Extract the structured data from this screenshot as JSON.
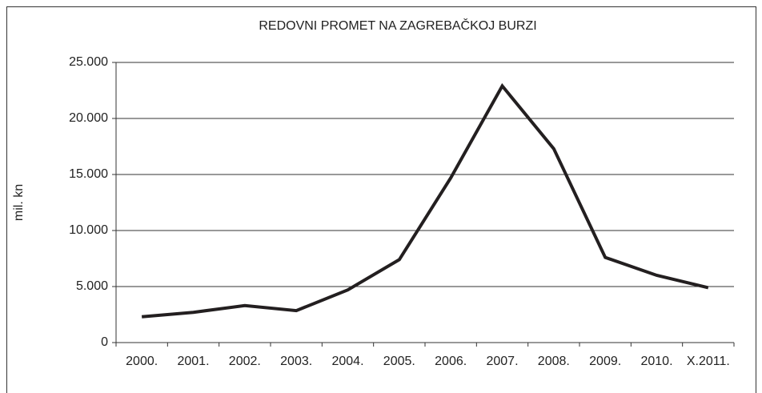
{
  "chart_data": {
    "type": "line",
    "title": "REDOVNI PROMET NA ZAGREBAČKOJ BURZI",
    "y_label": "mil. kn",
    "categories": [
      "2000.",
      "2001.",
      "2002.",
      "2003.",
      "2004.",
      "2005.",
      "2006.",
      "2007.",
      "2008.",
      "2009.",
      "2010.",
      "X.2011."
    ],
    "values": [
      2300,
      2700,
      3300,
      2850,
      4700,
      7400,
      14700,
      22900,
      17300,
      7600,
      6000,
      4900
    ],
    "color": "#231f20",
    "ylim": [
      0,
      25000
    ],
    "yticks": [
      0,
      {
        "value": 5000,
        "label": "5.000"
      },
      {
        "value": 10000,
        "label": "10.000"
      },
      {
        "value": 15000,
        "label": "15.000"
      },
      {
        "value": 20000,
        "label": "20.000"
      },
      {
        "value": 25000,
        "label": "25.000"
      }
    ],
    "grid": true
  }
}
